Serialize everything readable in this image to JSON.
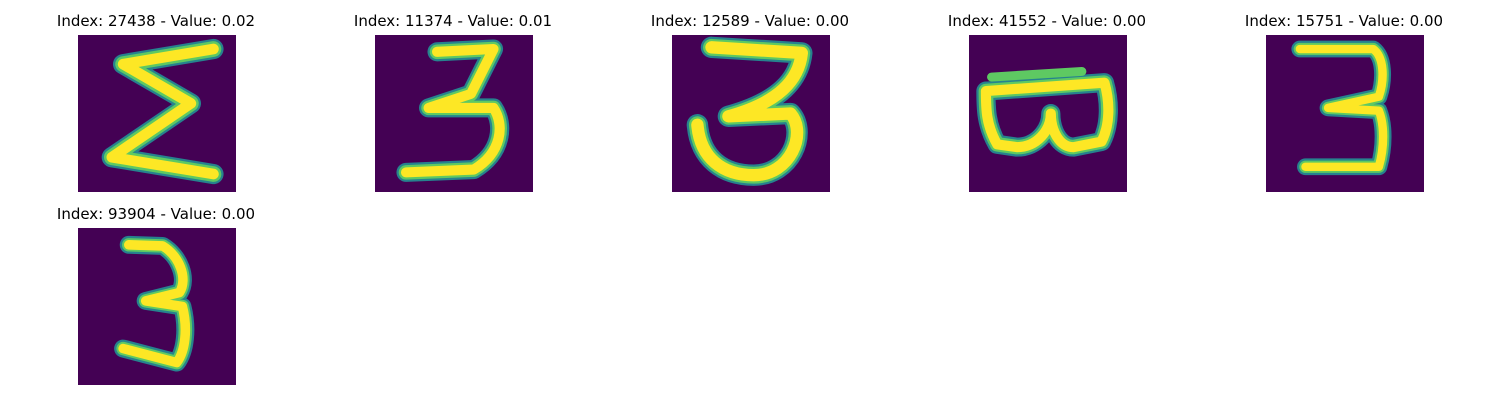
{
  "colors": {
    "background": "#440154",
    "low": "#3e4a89",
    "mid": "#26828e",
    "high": "#5ec962",
    "peak": "#fde725"
  },
  "panels": [
    {
      "title": "Index: 27438 - Value: 0.02",
      "digit_icon": "sigma-like-handwritten-3-icon"
    },
    {
      "title": "Index: 11374 - Value: 0.01",
      "digit_icon": "handwritten-3-icon"
    },
    {
      "title": "Index: 12589 - Value: 0.00",
      "digit_icon": "handwritten-3-icon"
    },
    {
      "title": "Index: 41552 - Value: 0.00",
      "digit_icon": "rotated-handwritten-3-icon"
    },
    {
      "title": "Index: 15751 - Value: 0.00",
      "digit_icon": "handwritten-3-icon"
    },
    {
      "title": "Index: 93904 - Value: 0.00",
      "digit_icon": "handwritten-3-icon"
    }
  ]
}
